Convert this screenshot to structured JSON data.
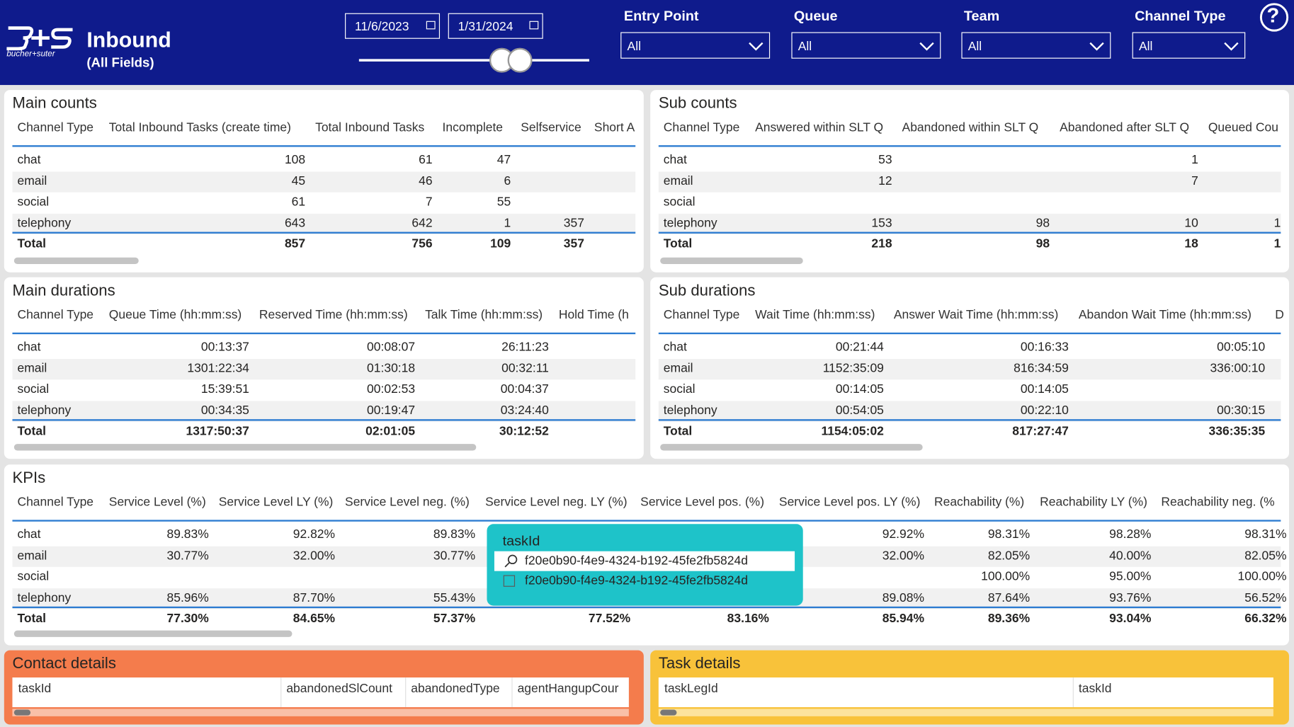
{
  "header": {
    "logo_text": "bucher+suter",
    "title": "Inbound",
    "subtitle": "(All Fields)",
    "date_start": "11/6/2023",
    "date_end": "1/31/2024",
    "help": "?",
    "filters": [
      {
        "label": "Entry Point",
        "value": "All"
      },
      {
        "label": "Queue",
        "value": "All"
      },
      {
        "label": "Team",
        "value": "All"
      },
      {
        "label": "Channel Type",
        "value": "All"
      }
    ]
  },
  "panels": [
    {
      "title": "Main counts",
      "columns": [
        "Channel Type",
        "Total Inbound Tasks (create time)",
        "Total Inbound Tasks",
        "Incomplete",
        "Selfservice",
        "Short A"
      ],
      "rows": [
        [
          "chat",
          "108",
          "61",
          "47",
          null,
          null
        ],
        [
          "email",
          "45",
          "46",
          "6",
          null,
          null
        ],
        [
          "social",
          "61",
          "7",
          "55",
          null,
          null
        ],
        [
          "telephony",
          "643",
          "642",
          "1",
          "357",
          null
        ]
      ],
      "total": [
        "Total",
        "857",
        "756",
        "109",
        "357",
        null
      ]
    },
    {
      "title": "Sub counts",
      "columns": [
        "Channel Type",
        "Answered within SLT Q",
        "Abandoned within SLT Q",
        "Abandoned after SLT Q",
        "Queued Cou"
      ],
      "rows": [
        [
          "chat",
          "53",
          null,
          "1",
          null
        ],
        [
          "email",
          "12",
          null,
          "7",
          null
        ],
        [
          "social",
          null,
          null,
          null,
          null
        ],
        [
          "telephony",
          "153",
          "98",
          "10",
          "1"
        ]
      ],
      "total": [
        "Total",
        "218",
        "98",
        "18",
        "1"
      ]
    },
    {
      "title": "Main durations",
      "columns": [
        "Channel Type",
        "Queue Time (hh:mm:ss)",
        "Reserved Time (hh:mm:ss)",
        "Talk Time (hh:mm:ss)",
        "Hold Time (h"
      ],
      "rows": [
        [
          "chat",
          "00:13:37",
          "00:08:07",
          "26:11:23",
          null
        ],
        [
          "email",
          "1301:22:34",
          "01:30:18",
          "00:32:11",
          null
        ],
        [
          "social",
          "15:39:51",
          "00:02:53",
          "00:04:37",
          null
        ],
        [
          "telephony",
          "00:34:35",
          "00:19:47",
          "03:24:40",
          null
        ]
      ],
      "total": [
        "Total",
        "1317:50:37",
        "02:01:05",
        "30:12:52",
        null
      ]
    },
    {
      "title": "Sub durations",
      "columns": [
        "Channel Type",
        "Wait Time (hh:mm:ss)",
        "Answer Wait Time (hh:mm:ss)",
        "Abandon Wait Time (hh:mm:ss)",
        "D"
      ],
      "rows": [
        [
          "chat",
          "00:21:44",
          "00:16:33",
          "00:05:10",
          null
        ],
        [
          "email",
          "1152:35:09",
          "816:34:59",
          "336:00:10",
          null
        ],
        [
          "social",
          "00:14:05",
          "00:14:05",
          null,
          null
        ],
        [
          "telephony",
          "00:54:05",
          "00:22:10",
          "00:30:15",
          null
        ]
      ],
      "total": [
        "Total",
        "1154:05:02",
        "817:27:47",
        "336:35:35",
        null
      ]
    },
    {
      "title": "KPIs",
      "columns": [
        "Channel Type",
        "Service Level (%)",
        "Service Level LY (%)",
        "Service Level neg. (%)",
        "Service Level neg. LY (%)",
        "Service Level pos. (%)",
        "Service Level pos. LY (%)",
        "Reachability (%)",
        "Reachability LY (%)",
        "Reachability neg. (%"
      ],
      "rows": [
        [
          "chat",
          "89.83%",
          "92.82%",
          "89.83%",
          null,
          null,
          "92.92%",
          "98.31%",
          "98.28%",
          "98.31%"
        ],
        [
          "email",
          "30.77%",
          "32.00%",
          "30.77%",
          null,
          null,
          "32.00%",
          "82.05%",
          "40.00%",
          "82.05%"
        ],
        [
          "social",
          null,
          null,
          null,
          null,
          null,
          null,
          "100.00%",
          "95.00%",
          "100.00%"
        ],
        [
          "telephony",
          "85.96%",
          "87.70%",
          "55.43%",
          null,
          null,
          "89.08%",
          "87.64%",
          "93.76%",
          "56.52%"
        ]
      ],
      "total": [
        "Total",
        "77.30%",
        "84.65%",
        "57.37%",
        "77.52%",
        "83.16%",
        "85.94%",
        "89.36%",
        "93.04%",
        "66.32%"
      ]
    }
  ],
  "filter_popup": {
    "title": "taskId",
    "search": "f20e0b90-f4e9-4324-b192-45fe2fb5824d",
    "option": "f20e0b90-f4e9-4324-b192-45fe2fb5824d"
  },
  "detail_panels": [
    {
      "title": "Contact details",
      "columns": [
        "taskId",
        "abandonedSlCount",
        "abandonedType",
        "agentHangupCour"
      ]
    },
    {
      "title": "Task details",
      "columns": [
        "taskLegId",
        "taskId"
      ]
    }
  ]
}
